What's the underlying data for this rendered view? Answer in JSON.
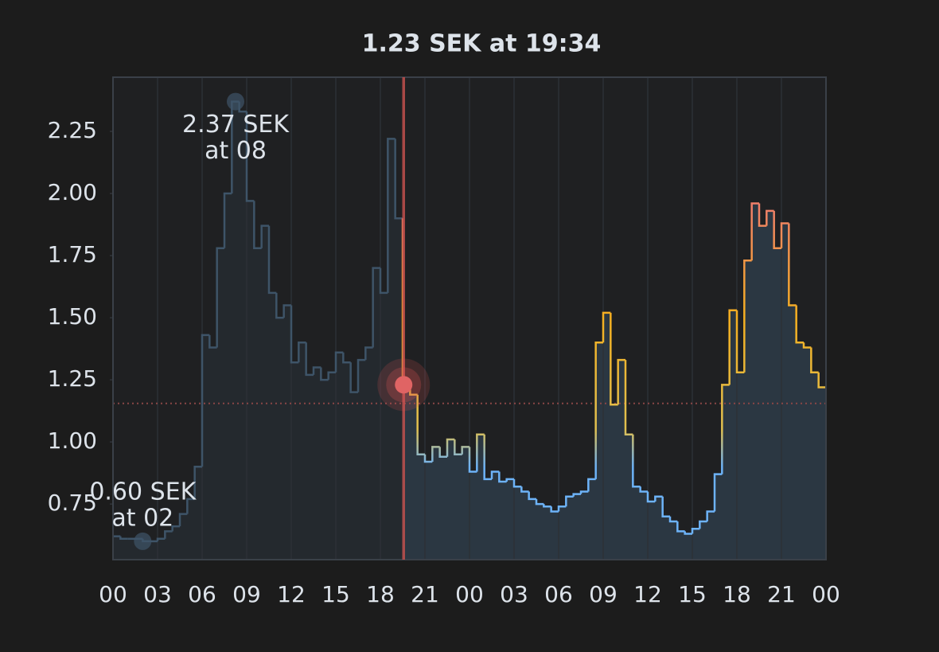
{
  "chart_data": {
    "type": "step",
    "title": "1.23 SEK at 19:34",
    "xlim": [
      0,
      48
    ],
    "ylim": [
      0.526,
      2.468
    ],
    "xticks": [
      {
        "value": 0,
        "label": "00"
      },
      {
        "value": 3,
        "label": "03"
      },
      {
        "value": 6,
        "label": "06"
      },
      {
        "value": 9,
        "label": "09"
      },
      {
        "value": 12,
        "label": "12"
      },
      {
        "value": 15,
        "label": "15"
      },
      {
        "value": 18,
        "label": "18"
      },
      {
        "value": 21,
        "label": "21"
      },
      {
        "value": 24,
        "label": "00"
      },
      {
        "value": 27,
        "label": "03"
      },
      {
        "value": 30,
        "label": "06"
      },
      {
        "value": 33,
        "label": "09"
      },
      {
        "value": 36,
        "label": "12"
      },
      {
        "value": 39,
        "label": "15"
      },
      {
        "value": 42,
        "label": "18"
      },
      {
        "value": 45,
        "label": "21"
      },
      {
        "value": 48,
        "label": "00"
      }
    ],
    "yticks": [
      0.75,
      {
        "value": 1,
        "label": "1.00"
      },
      1.25,
      {
        "value": 1.5,
        "label": "1.50"
      },
      1.75,
      {
        "value": 2,
        "label": "2.00"
      },
      2.25
    ],
    "grid": "x",
    "series": [
      {
        "color": "#3e5468",
        "fill": "#24292e",
        "x": [
          0,
          0.5,
          1,
          1.5,
          2,
          2.5,
          3,
          3.5,
          4,
          4.5,
          5,
          5.5,
          6,
          6.5,
          7,
          7.5,
          8,
          8.5,
          9,
          9.5,
          10,
          10.5,
          11,
          11.5,
          12,
          12.5,
          13,
          13.5,
          14,
          14.5,
          15,
          15.5,
          16,
          16.5,
          17,
          17.5,
          18,
          18.5,
          19
        ],
        "values": [
          0.62,
          0.61,
          0.61,
          0.61,
          0.6,
          0.6,
          0.61,
          0.64,
          0.66,
          0.71,
          0.77,
          0.9,
          1.43,
          1.38,
          1.78,
          2.0,
          2.37,
          2.33,
          1.97,
          1.78,
          1.87,
          1.6,
          1.5,
          1.55,
          1.32,
          1.4,
          1.27,
          1.3,
          1.25,
          1.28,
          1.36,
          1.32,
          1.2,
          1.33,
          1.38,
          1.7,
          1.6,
          2.22,
          1.9
        ]
      },
      {
        "fill": "#2b3742",
        "color_stops": [
          {
            "value": 0.9,
            "color": "#6db3f8"
          },
          {
            "value": 1.05,
            "color": "#e0c050"
          },
          {
            "value": 1.5,
            "color": "#f5b020"
          },
          {
            "value": 1.95,
            "color": "#f07f6a"
          }
        ],
        "x": [
          19.5,
          20,
          20.5,
          21,
          21.5,
          22,
          22.5,
          23,
          23.5,
          24,
          24.5,
          25,
          25.5,
          26,
          26.5,
          27,
          27.5,
          28,
          28.5,
          29,
          29.5,
          30,
          30.5,
          31,
          31.5,
          32,
          32.5,
          33,
          33.5,
          34,
          34.5,
          35,
          35.5,
          36,
          36.5,
          37,
          37.5,
          38,
          38.5,
          39,
          39.5,
          40,
          40.5,
          41,
          41.5,
          42,
          42.5,
          43,
          43.5,
          44,
          44.5,
          45,
          45.5,
          46,
          46.5,
          47,
          47.5
        ],
        "values": [
          1.23,
          1.19,
          0.95,
          0.92,
          0.98,
          0.94,
          1.01,
          0.95,
          0.98,
          0.88,
          1.03,
          0.85,
          0.88,
          0.84,
          0.85,
          0.82,
          0.8,
          0.77,
          0.75,
          0.74,
          0.72,
          0.74,
          0.78,
          0.79,
          0.8,
          0.85,
          1.4,
          1.52,
          1.15,
          1.33,
          1.03,
          0.82,
          0.8,
          0.76,
          0.78,
          0.7,
          0.68,
          0.64,
          0.63,
          0.65,
          0.68,
          0.72,
          0.87,
          1.23,
          1.53,
          1.28,
          1.73,
          1.96,
          1.87,
          1.93,
          1.78,
          1.88,
          1.55,
          1.4,
          1.38,
          1.28,
          1.22
        ]
      }
    ],
    "current": {
      "x": 19.567,
      "value": 1.23,
      "color": "#c0504d"
    },
    "reference_line": {
      "value": 1.155,
      "color": "#8a4646"
    },
    "annotations": [
      {
        "lines": [
          "2.37 SEK",
          "at 08"
        ],
        "x": 8.25,
        "y": 2.37
      },
      {
        "lines": [
          "0.60 SEK",
          "at 02"
        ],
        "x": 2,
        "y": 0.6
      }
    ]
  }
}
